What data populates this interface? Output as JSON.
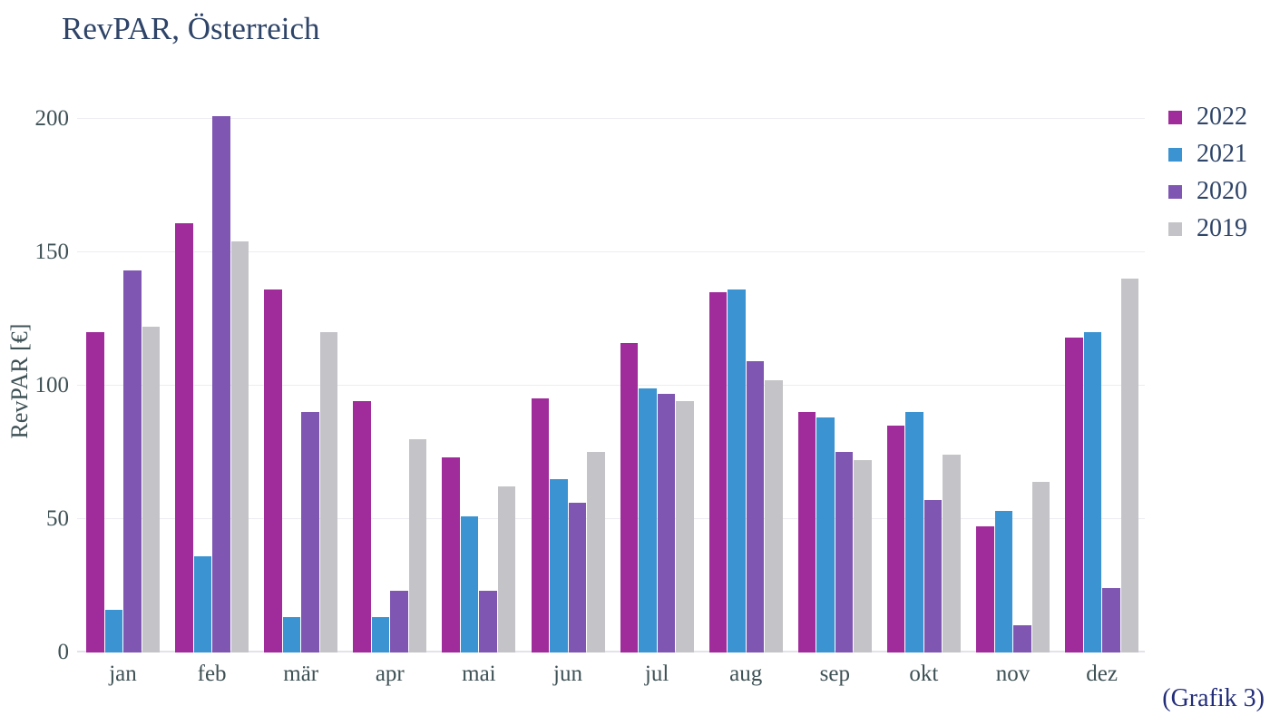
{
  "title": "RevPAR, Österreich",
  "caption": "(Grafik 3)",
  "colors": {
    "series_2022": "#a02c9b",
    "series_2021": "#3b93d1",
    "series_2020": "#7f57b2",
    "series_2019": "#c4c4c8",
    "gridline": "#ededf2",
    "title_text": "#2e4468",
    "axis_text": "#3e5155",
    "caption_text": "#222d7a"
  },
  "chart_data": {
    "type": "bar",
    "title": "RevPAR, Österreich",
    "xlabel": "",
    "ylabel": "RevPAR [€]",
    "ylim": [
      0,
      200
    ],
    "yticks": [
      0,
      50,
      100,
      150,
      200
    ],
    "grid": true,
    "legend_position": "top-right",
    "categories": [
      "jan",
      "feb",
      "mär",
      "apr",
      "mai",
      "jun",
      "jul",
      "aug",
      "sep",
      "okt",
      "nov",
      "dez"
    ],
    "series": [
      {
        "name": "2022",
        "color": "#a02c9b",
        "values": [
          120,
          161,
          136,
          94,
          73,
          95,
          116,
          135,
          90,
          85,
          47,
          118
        ]
      },
      {
        "name": "2021",
        "color": "#3b93d1",
        "values": [
          16,
          36,
          13,
          13,
          51,
          65,
          99,
          136,
          88,
          90,
          53,
          120
        ]
      },
      {
        "name": "2020",
        "color": "#7f57b2",
        "values": [
          143,
          201,
          90,
          23,
          23,
          56,
          97,
          109,
          75,
          57,
          10,
          24
        ]
      },
      {
        "name": "2019",
        "color": "#c4c4c8",
        "values": [
          122,
          154,
          120,
          80,
          62,
          75,
          94,
          102,
          72,
          74,
          64,
          140
        ]
      }
    ],
    "annotation": "(Grafik 3)"
  }
}
